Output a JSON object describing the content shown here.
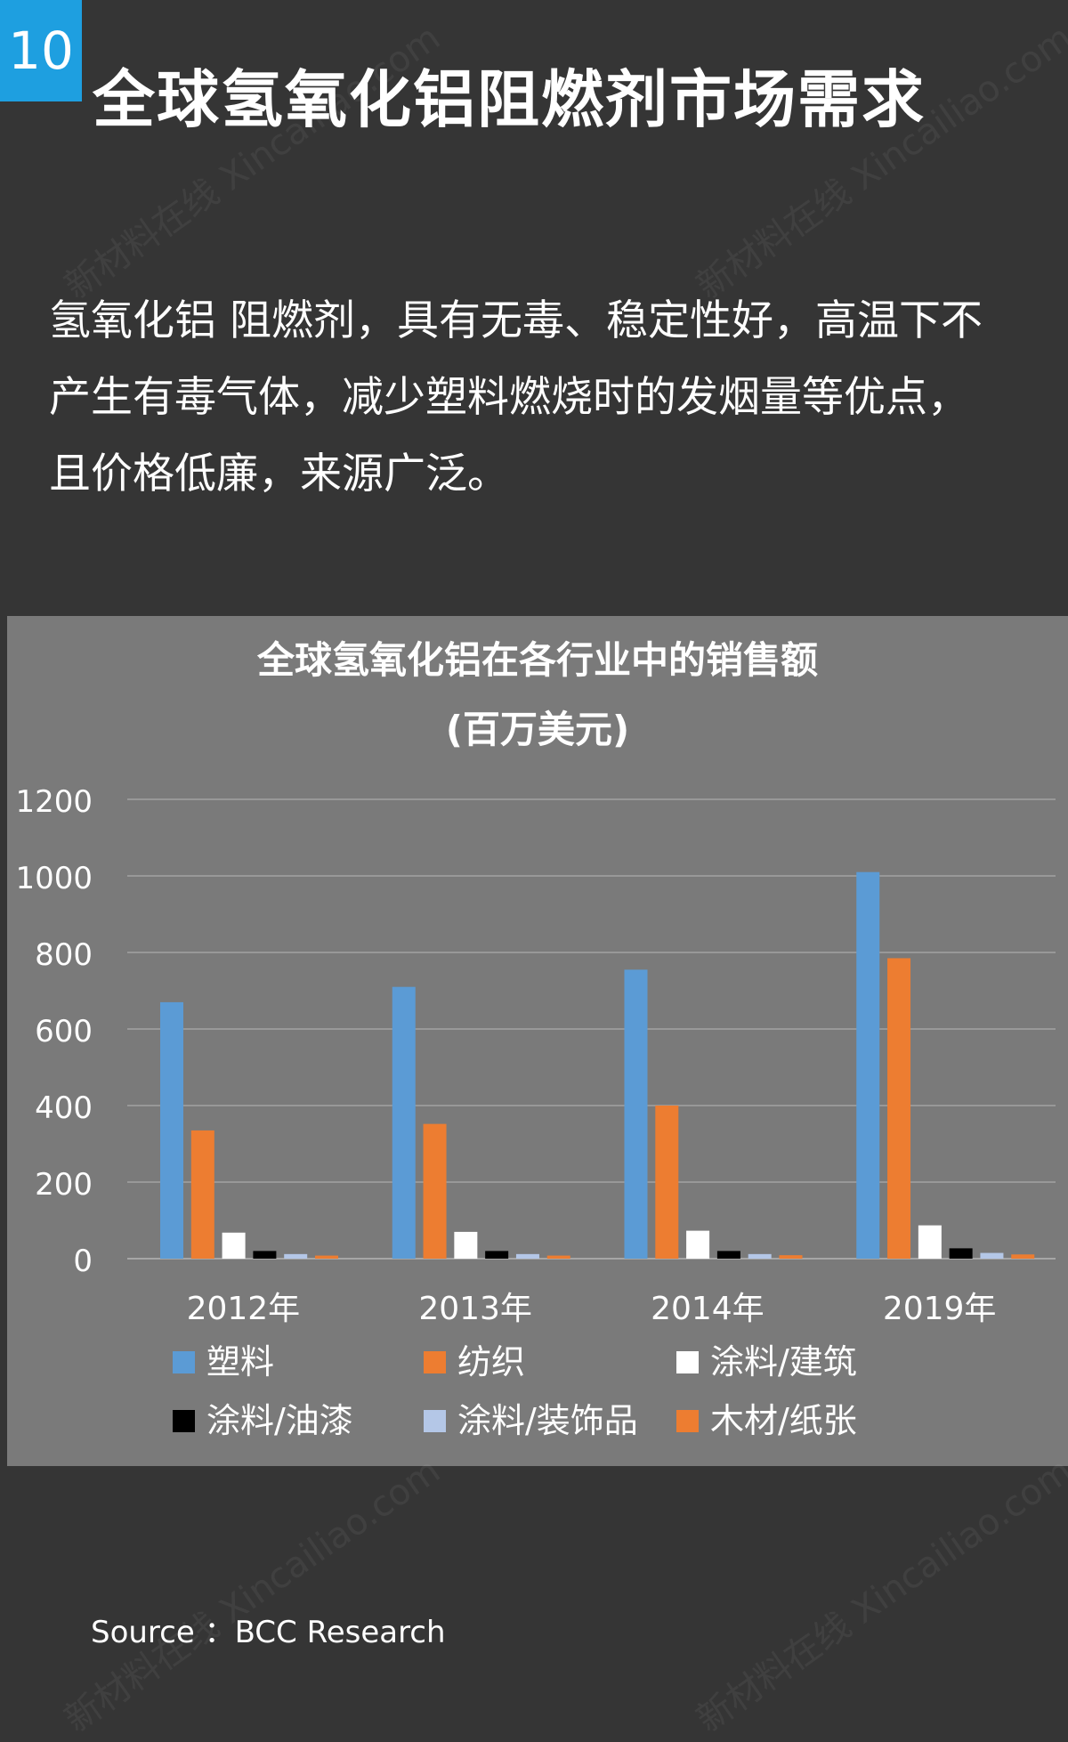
{
  "header": {
    "number": "10",
    "title": "全球氢氧化铝阻燃剂市场需求"
  },
  "intro": {
    "lines": [
      "氢氧化铝 阻燃剂，具有无毒、稳定性好，高温下不",
      "产生有毒气体，减少塑料燃烧时的发烟量等优点，",
      "且价格低廉，来源广泛。"
    ]
  },
  "chart_data": {
    "type": "bar",
    "title": "全球氢氧化铝在各行业中的销售额",
    "subtitle": "(百万美元)",
    "categories": [
      "2012年",
      "2013年",
      "2014年",
      "2019年"
    ],
    "ylim": [
      0,
      1200
    ],
    "yticks": [
      0,
      200,
      400,
      600,
      800,
      1000,
      1200
    ],
    "grid": true,
    "legend_position": "bottom",
    "series": [
      {
        "name": "塑料",
        "color": "#5b9bd5",
        "values": [
          670,
          710,
          755,
          1010
        ]
      },
      {
        "name": "纺织",
        "color": "#ed7d31",
        "values": [
          335,
          352,
          400,
          785
        ]
      },
      {
        "name": "涂料/建筑",
        "color": "#ffffff",
        "values": [
          68,
          70,
          73,
          87
        ]
      },
      {
        "name": "涂料/油漆",
        "color": "#000000",
        "values": [
          20,
          20,
          20,
          27
        ]
      },
      {
        "name": "涂料/装饰品",
        "color": "#b4c7e7",
        "values": [
          12,
          12,
          12,
          15
        ]
      },
      {
        "name": "木材/纸张",
        "color": "#ed7d31",
        "values": [
          8,
          8,
          9,
          11
        ]
      }
    ]
  },
  "footer": {
    "source": "Source ：BCC Research"
  },
  "watermark": {
    "text": "新材料在线 Xincailiao.com"
  }
}
